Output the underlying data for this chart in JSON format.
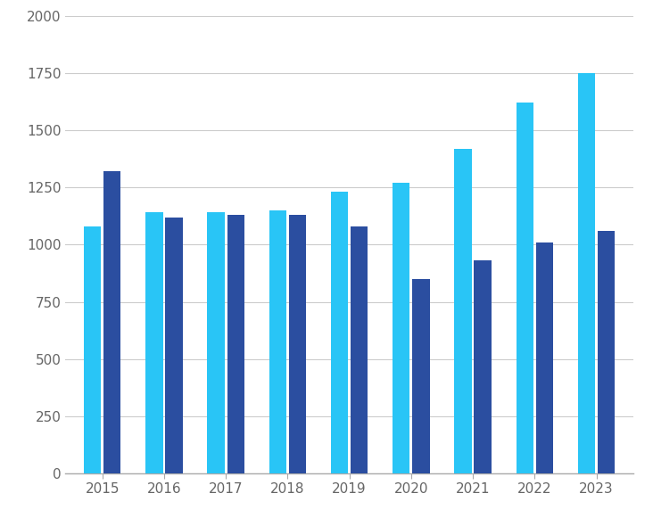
{
  "years": [
    2015,
    2016,
    2017,
    2018,
    2019,
    2020,
    2021,
    2022,
    2023
  ],
  "cyan_values": [
    1080,
    1140,
    1140,
    1150,
    1230,
    1270,
    1420,
    1620,
    1750
  ],
  "blue_values": [
    1320,
    1120,
    1130,
    1130,
    1080,
    850,
    930,
    1010,
    1060
  ],
  "cyan_color": "#29C5F6",
  "blue_color": "#2B4EA0",
  "ylim": [
    0,
    2000
  ],
  "yticks": [
    0,
    250,
    500,
    750,
    1000,
    1250,
    1500,
    1750,
    2000
  ],
  "background_color": "#FFFFFF",
  "grid_color": "#CCCCCC",
  "bar_width": 0.28,
  "bar_gap": 0.04
}
